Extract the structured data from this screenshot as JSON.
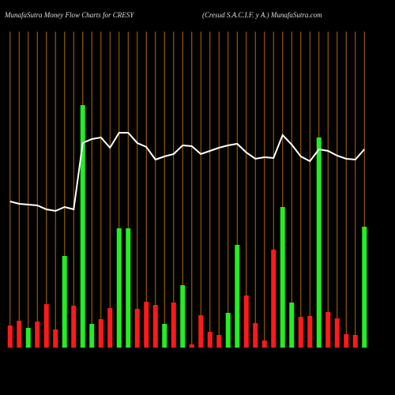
{
  "chart_data": {
    "type": "bar",
    "title": "MunafaSutra  Money Flow  Charts for CRESY",
    "subtitle": "(Cresud S.A.C.I.F. y A.) MunafaSutra.com",
    "ylim": [
      0,
      440
    ],
    "grid": true,
    "grid_color": "#b06a00",
    "series": [
      {
        "name": "money flow",
        "colors": [
          "#ff1a1a",
          "#ff1a1a",
          "#22ee22",
          "#ff1a1a",
          "#ff1a1a",
          "#ff1a1a",
          "#22ee22",
          "#ff1a1a",
          "#22ee22",
          "#22ee22",
          "#ff1a1a",
          "#ff1a1a",
          "#22ee22",
          "#22ee22",
          "#ff1a1a",
          "#ff1a1a",
          "#ff1a1a",
          "#22ee22",
          "#ff1a1a",
          "#22ee22",
          "#ff1a1a",
          "#ff1a1a",
          "#ff1a1a",
          "#ff1a1a",
          "#22ee22",
          "#22ee22",
          "#ff1a1a",
          "#ff1a1a",
          "#ff1a1a",
          "#ff1a1a",
          "#22ee22",
          "#22ee22",
          "#ff1a1a",
          "#ff1a1a",
          "#22ee22",
          "#ff1a1a",
          "#ff1a1a",
          "#ff1a1a",
          "#ff1a1a",
          "#22ee22"
        ],
        "values": [
          28,
          34,
          25,
          33,
          55,
          23,
          116,
          53,
          307,
          30,
          36,
          50,
          151,
          151,
          49,
          58,
          54,
          30,
          57,
          79,
          4,
          41,
          20,
          16,
          44,
          130,
          66,
          31,
          9,
          124,
          178,
          57,
          39,
          40,
          266,
          45,
          37,
          17,
          16,
          153
        ]
      },
      {
        "name": "price",
        "color": "#ffffff",
        "values": [
          185,
          182,
          181,
          180,
          175,
          173,
          178,
          175,
          259,
          264,
          266,
          253,
          272,
          272,
          259,
          254,
          238,
          242,
          245,
          256,
          255,
          245,
          249,
          253,
          256,
          258,
          247,
          239,
          241,
          240,
          269,
          257,
          242,
          236,
          251,
          249,
          243,
          239,
          238,
          251
        ]
      }
    ]
  }
}
